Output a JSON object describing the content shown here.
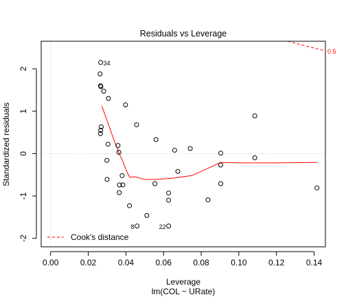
{
  "chart_data": {
    "type": "scatter",
    "title": "Residuals vs Leverage",
    "xlabel": "Leverage",
    "sublabel": "lm(COL ~ URate)",
    "ylabel": "Standardized residuals",
    "xlim": [
      -0.005,
      0.146
    ],
    "ylim": [
      -2.2,
      2.65
    ],
    "x_ticks": [
      0.0,
      0.02,
      0.04,
      0.06,
      0.08,
      0.1,
      0.12,
      0.14
    ],
    "x_tick_labels": [
      "0.00",
      "0.02",
      "0.04",
      "0.06",
      "0.08",
      "0.10",
      "0.12",
      "0.14"
    ],
    "y_ticks": [
      -2,
      -1,
      0,
      1,
      2
    ],
    "y_tick_labels": [
      "-2",
      "-1",
      "0",
      "1",
      "2"
    ],
    "points": [
      {
        "x": 0.0266,
        "y": 2.15,
        "label": "34"
      },
      {
        "x": 0.0263,
        "y": 1.88
      },
      {
        "x": 0.0265,
        "y": 1.6
      },
      {
        "x": 0.0267,
        "y": 1.58
      },
      {
        "x": 0.0282,
        "y": 1.47
      },
      {
        "x": 0.0307,
        "y": 1.3
      },
      {
        "x": 0.0398,
        "y": 1.15
      },
      {
        "x": 0.1085,
        "y": 0.89
      },
      {
        "x": 0.0457,
        "y": 0.68
      },
      {
        "x": 0.0269,
        "y": 0.63
      },
      {
        "x": 0.0266,
        "y": 0.55
      },
      {
        "x": 0.0265,
        "y": 0.47
      },
      {
        "x": 0.056,
        "y": 0.33
      },
      {
        "x": 0.0305,
        "y": 0.22
      },
      {
        "x": 0.0358,
        "y": 0.19
      },
      {
        "x": 0.0742,
        "y": 0.12
      },
      {
        "x": 0.0659,
        "y": 0.08
      },
      {
        "x": 0.0363,
        "y": 0.03
      },
      {
        "x": 0.0904,
        "y": 0.01
      },
      {
        "x": 0.1085,
        "y": -0.1
      },
      {
        "x": 0.0299,
        "y": -0.16
      },
      {
        "x": 0.0904,
        "y": -0.27
      },
      {
        "x": 0.0676,
        "y": -0.42
      },
      {
        "x": 0.038,
        "y": -0.52
      },
      {
        "x": 0.03,
        "y": -0.61
      },
      {
        "x": 0.0366,
        "y": -0.74
      },
      {
        "x": 0.0384,
        "y": -0.74
      },
      {
        "x": 0.0554,
        "y": -0.71
      },
      {
        "x": 0.0904,
        "y": -0.71
      },
      {
        "x": 0.1415,
        "y": -0.81
      },
      {
        "x": 0.0365,
        "y": -0.92
      },
      {
        "x": 0.0627,
        "y": -0.93
      },
      {
        "x": 0.0836,
        "y": -1.09
      },
      {
        "x": 0.0627,
        "y": -1.1
      },
      {
        "x": 0.0419,
        "y": -1.23
      },
      {
        "x": 0.0511,
        "y": -1.46
      },
      {
        "x": 0.0459,
        "y": -1.71,
        "label": "8"
      },
      {
        "x": 0.0627,
        "y": -1.71,
        "label": "22"
      }
    ],
    "smoother": {
      "x": [
        0.0272,
        0.03,
        0.033,
        0.036,
        0.0385,
        0.04,
        0.042,
        0.045,
        0.05,
        0.056,
        0.065,
        0.075,
        0.082,
        0.0904,
        0.1,
        0.1085,
        0.12,
        0.1415
      ],
      "y": [
        1.12,
        0.78,
        0.4,
        0.05,
        -0.2,
        -0.38,
        -0.56,
        -0.55,
        -0.61,
        -0.61,
        -0.58,
        -0.52,
        -0.38,
        -0.21,
        -0.22,
        -0.22,
        -0.22,
        -0.21
      ],
      "color": "#ff0000"
    },
    "cooks_distance": {
      "label": "0.5",
      "x": [
        0.126,
        0.146
      ],
      "y": [
        2.65,
        2.42
      ],
      "color": "#ff0000"
    },
    "reference_lines": {
      "x": 0,
      "y": 0,
      "color": "#bebebe"
    },
    "legend": {
      "position": "bottom-left",
      "entries": [
        {
          "label": "Cook's distance",
          "color": "#ff0000",
          "dashed": true
        }
      ]
    },
    "grid": false
  }
}
